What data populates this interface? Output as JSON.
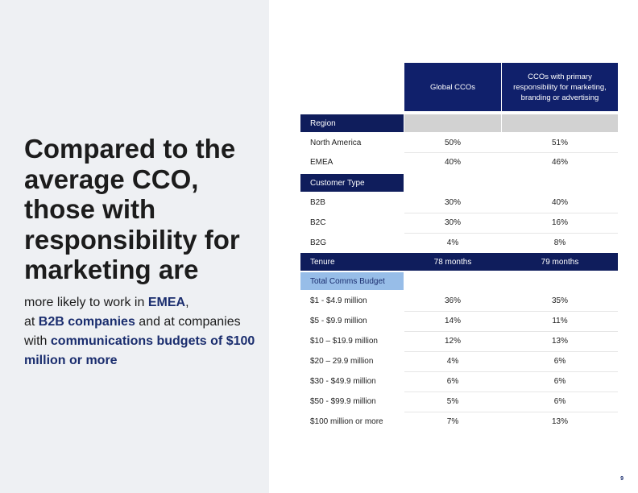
{
  "headline": "Compared to the average CCO, those with responsibility for marketing are",
  "subtext": {
    "part1": "more likely to work in ",
    "hl1": "EMEA",
    "part2": ",",
    "part3": "at ",
    "hl2": "B2B companies",
    "part4": " and at companies with ",
    "hl3": "communications budgets of $100 million or more"
  },
  "table": {
    "col1": "Global CCOs",
    "col2": "CCOs with primary responsibility for marketing, branding or advertising",
    "region": {
      "title": "Region",
      "rows": [
        {
          "label": "North America",
          "v1": "50%",
          "v2": "51%"
        },
        {
          "label": "EMEA",
          "v1": "40%",
          "v2": "46%"
        }
      ]
    },
    "customer": {
      "title": "Customer Type",
      "rows": [
        {
          "label": "B2B",
          "v1": "30%",
          "v2": "40%"
        },
        {
          "label": "B2C",
          "v1": "30%",
          "v2": "16%"
        },
        {
          "label": "B2G",
          "v1": "4%",
          "v2": "8%"
        }
      ]
    },
    "tenure": {
      "label": "Tenure",
      "v1": "78 months",
      "v2": "79 months"
    },
    "budget": {
      "title": "Total Comms Budget",
      "rows": [
        {
          "label": "$1 - $4.9 million",
          "v1": "36%",
          "v2": "35%"
        },
        {
          "label": "$5 - $9.9 million",
          "v1": "14%",
          "v2": "11%"
        },
        {
          "label": "$10 – $19.9 million",
          "v1": "12%",
          "v2": "13%"
        },
        {
          "label": "$20 – 29.9 million",
          "v1": "4%",
          "v2": "6%"
        },
        {
          "label": "$30 - $49.9 million",
          "v1": "6%",
          "v2": "6%"
        },
        {
          "label": "$50 - $99.9 million",
          "v1": "5%",
          "v2": "6%"
        },
        {
          "label": "$100 million or more",
          "v1": "7%",
          "v2": "13%"
        }
      ]
    }
  },
  "page_number": "9",
  "colors": {
    "navy": "#0f1d5c",
    "header_blue": "#10206b",
    "light_blue": "#97bde8",
    "accent_text": "#1a2d6e"
  }
}
